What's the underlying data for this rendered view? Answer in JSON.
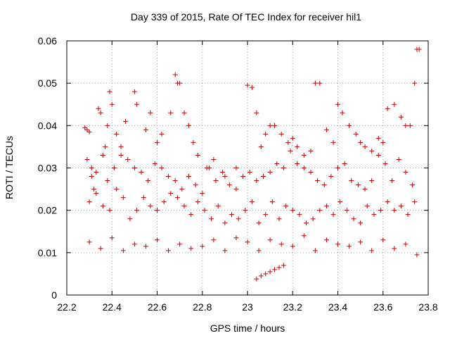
{
  "chart_data": {
    "type": "scatter",
    "title": "Day 339 of 2015, Rate Of TEC Index for receiver hil1",
    "xlabel": "GPS time / hours",
    "ylabel": "ROTI / TECUs",
    "xlim": [
      22.2,
      23.8
    ],
    "ylim": [
      0,
      0.06
    ],
    "x_ticks": [
      22.2,
      22.4,
      22.6,
      22.8,
      23.0,
      23.2,
      23.4,
      23.6,
      23.8
    ],
    "x_tick_labels": [
      "22.2",
      "22.4",
      "22.6",
      "22.8",
      "23",
      "23.2",
      "23.4",
      "23.6",
      "23.8"
    ],
    "y_ticks": [
      0,
      0.01,
      0.02,
      0.03,
      0.04,
      0.05,
      0.06
    ],
    "y_tick_labels": [
      "0",
      "0.01",
      "0.02",
      "0.03",
      "0.04",
      "0.05",
      "0.06"
    ],
    "grid": true,
    "marker": "+",
    "color": "#cc0000",
    "series": [
      {
        "name": "hil1",
        "x": [
          22.28,
          22.29,
          22.3,
          22.31,
          22.32,
          22.34,
          22.35,
          22.37,
          22.38,
          22.39,
          22.4,
          22.42,
          22.44,
          22.46,
          22.5,
          22.51,
          22.55,
          22.57,
          22.6,
          22.62,
          22.66,
          22.68,
          22.69,
          22.7,
          22.72,
          22.74,
          22.76,
          22.78,
          22.82,
          22.85,
          22.9,
          22.95,
          23.0,
          23.02,
          23.04,
          23.06,
          23.08,
          23.1,
          23.12,
          23.15,
          23.18,
          23.2,
          23.22,
          23.25,
          23.28,
          23.3,
          23.32,
          23.35,
          23.38,
          23.4,
          23.42,
          23.45,
          23.48,
          23.5,
          23.52,
          23.55,
          23.58,
          23.6,
          23.62,
          23.65,
          23.68,
          23.7,
          23.72,
          23.74,
          23.75,
          23.76,
          22.29,
          22.31,
          22.33,
          22.36,
          22.38,
          22.41,
          22.44,
          22.47,
          22.5,
          22.53,
          22.56,
          22.59,
          22.62,
          22.65,
          22.68,
          22.71,
          22.74,
          22.77,
          22.8,
          22.83,
          22.86,
          22.89,
          22.92,
          22.95,
          22.98,
          23.01,
          23.04,
          23.07,
          23.1,
          23.13,
          23.16,
          23.19,
          23.22,
          23.25,
          23.28,
          23.31,
          23.34,
          23.37,
          23.4,
          23.43,
          23.46,
          23.49,
          23.52,
          23.55,
          23.58,
          23.61,
          23.64,
          23.67,
          23.7,
          23.73,
          22.3,
          22.33,
          22.36,
          22.39,
          22.42,
          22.45,
          22.48,
          22.51,
          22.54,
          22.57,
          22.6,
          22.63,
          22.66,
          22.69,
          22.72,
          22.75,
          22.78,
          22.81,
          22.84,
          22.87,
          22.9,
          22.93,
          22.96,
          22.99,
          23.02,
          23.05,
          23.08,
          23.11,
          23.14,
          23.17,
          23.2,
          23.23,
          23.26,
          23.29,
          23.32,
          23.35,
          23.38,
          23.41,
          23.44,
          23.47,
          23.5,
          23.53,
          23.56,
          23.59,
          23.62,
          23.65,
          23.68,
          23.71,
          23.74,
          23.04,
          23.06,
          23.08,
          23.1,
          23.12,
          23.14,
          23.16,
          22.3,
          22.35,
          22.4,
          22.45,
          22.5,
          22.55,
          22.6,
          22.65,
          22.7,
          22.75,
          22.8,
          22.85,
          22.9,
          22.95,
          23.0,
          23.05,
          23.1,
          23.15,
          23.2,
          23.25,
          23.3,
          23.35,
          23.4,
          23.45,
          23.5,
          23.55,
          23.6,
          23.65,
          23.7,
          23.75
        ],
        "y": [
          0.0395,
          0.039,
          0.0385,
          0.03,
          0.025,
          0.044,
          0.043,
          0.035,
          0.04,
          0.048,
          0.045,
          0.038,
          0.035,
          0.041,
          0.048,
          0.045,
          0.039,
          0.043,
          0.036,
          0.038,
          0.043,
          0.052,
          0.05,
          0.05,
          0.043,
          0.04,
          0.036,
          0.033,
          0.03,
          0.032,
          0.028,
          0.025,
          0.0495,
          0.049,
          0.043,
          0.035,
          0.038,
          0.04,
          0.04,
          0.038,
          0.036,
          0.037,
          0.035,
          0.03,
          0.034,
          0.05,
          0.05,
          0.039,
          0.036,
          0.045,
          0.043,
          0.04,
          0.038,
          0.036,
          0.035,
          0.034,
          0.037,
          0.036,
          0.044,
          0.045,
          0.042,
          0.04,
          0.04,
          0.05,
          0.058,
          0.058,
          0.032,
          0.028,
          0.029,
          0.033,
          0.027,
          0.03,
          0.033,
          0.032,
          0.03,
          0.029,
          0.027,
          0.031,
          0.03,
          0.028,
          0.027,
          0.025,
          0.028,
          0.026,
          0.024,
          0.03,
          0.027,
          0.029,
          0.026,
          0.03,
          0.028,
          0.029,
          0.027,
          0.028,
          0.029,
          0.031,
          0.03,
          0.034,
          0.031,
          0.033,
          0.029,
          0.027,
          0.026,
          0.028,
          0.03,
          0.031,
          0.027,
          0.026,
          0.025,
          0.027,
          0.033,
          0.031,
          0.027,
          0.032,
          0.029,
          0.026,
          0.022,
          0.024,
          0.021,
          0.02,
          0.025,
          0.023,
          0.018,
          0.02,
          0.023,
          0.021,
          0.02,
          0.022,
          0.024,
          0.023,
          0.021,
          0.019,
          0.022,
          0.02,
          0.018,
          0.021,
          0.017,
          0.019,
          0.018,
          0.02,
          0.022,
          0.017,
          0.019,
          0.022,
          0.018,
          0.021,
          0.02,
          0.019,
          0.017,
          0.018,
          0.02,
          0.021,
          0.019,
          0.022,
          0.02,
          0.018,
          0.017,
          0.021,
          0.019,
          0.02,
          0.022,
          0.02,
          0.021,
          0.019,
          0.022,
          0.0038,
          0.0045,
          0.005,
          0.0055,
          0.006,
          0.0065,
          0.007,
          0.0125,
          0.011,
          0.0135,
          0.0105,
          0.012,
          0.0115,
          0.013,
          0.0105,
          0.012,
          0.011,
          0.0115,
          0.013,
          0.0105,
          0.0135,
          0.0125,
          0.0105,
          0.013,
          0.012,
          0.0115,
          0.014,
          0.0105,
          0.013,
          0.012,
          0.0115,
          0.0125,
          0.0105,
          0.013,
          0.011,
          0.012,
          0.0095
        ]
      }
    ]
  }
}
